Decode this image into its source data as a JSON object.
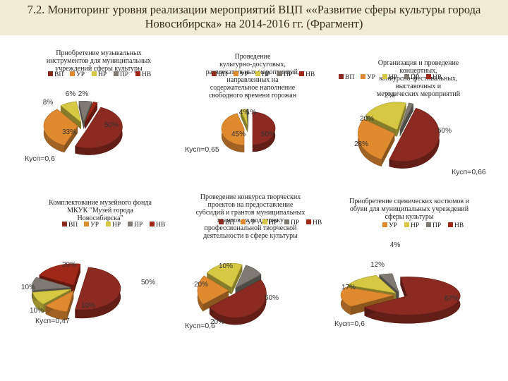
{
  "header": {
    "line1": "7.2. Мониторинг уровня реализации мероприятий ВЦП ««Развитие сферы культуры города",
    "line2": "Новосибирска» на 2014-2016 гг. (Фрагмент)"
  },
  "colors": {
    "ВП": "#8a2a20",
    "УР": "#e08a30",
    "НР": "#d6c842",
    "ПР": "#7e7a72",
    "НВ": "#a02818"
  },
  "chart_data": [
    {
      "type": "pie",
      "title": "Приобретение музыкальных инструментов для муниципальных учреждений сферы культуры",
      "legend": [
        "ВП",
        "УР",
        "НР",
        "ПР",
        "НВ"
      ],
      "legend_placement": "under-title",
      "slices": [
        {
          "category": "ВП",
          "value": 50,
          "label": "50%"
        },
        {
          "category": "УР",
          "value": 33,
          "label": "33%"
        },
        {
          "category": "НР",
          "value": 8,
          "label": "8%"
        },
        {
          "category": "ПР",
          "value": 6,
          "label": "6%"
        },
        {
          "category": "НВ",
          "value": 2,
          "label": "2%"
        }
      ],
      "note": "Кусп=0,6"
    },
    {
      "type": "pie",
      "title": "Проведение культурно-досуговых, развлекательных мероприятий, направленных на содержательное наполнение свободного времени горожан",
      "legend": [
        "ВП",
        "УР",
        "НР",
        "ПР",
        "НВ"
      ],
      "legend_placement": "over-title",
      "slices": [
        {
          "category": "ВП",
          "value": 50,
          "label": "50%"
        },
        {
          "category": "УР",
          "value": 45,
          "label": "45%"
        },
        {
          "category": "НР",
          "value": 4,
          "label": "4%"
        },
        {
          "category": "ПР",
          "value": 1,
          "label": "1%"
        }
      ],
      "note": "Кусп=0,65"
    },
    {
      "type": "pie",
      "title": "Организация и проведение концертных, конкурсно-фестивальных, выставочных и методических мероприятий",
      "legend": [
        "ВП",
        "УР",
        "НР",
        "ПР",
        "НВ"
      ],
      "legend_placement": "over-title",
      "slices": [
        {
          "category": "ВП",
          "value": 50,
          "label": "50%"
        },
        {
          "category": "УР",
          "value": 28,
          "label": "28%"
        },
        {
          "category": "НР",
          "value": 20,
          "label": "20%"
        },
        {
          "category": "ПР",
          "value": 2,
          "label": "2%"
        }
      ],
      "note": "Кусп=0,66"
    },
    {
      "type": "pie",
      "title": "Комплектование музейного фонда МКУК \"Музей города Новосибирска\"",
      "legend": [
        "ВП",
        "УР",
        "НР",
        "ПР",
        "НВ"
      ],
      "legend_placement": "over-title",
      "slices": [
        {
          "category": "ВП",
          "value": 50,
          "label": "50%"
        },
        {
          "category": "УР",
          "value": 10,
          "label": "10%"
        },
        {
          "category": "НР",
          "value": 10,
          "label": "10%"
        },
        {
          "category": "ПР",
          "value": 10,
          "label": "10%"
        },
        {
          "category": "НВ",
          "value": 20,
          "label": "20%"
        }
      ],
      "note": "Кусп=0,47"
    },
    {
      "type": "pie",
      "title": "Проведение конкурса творческих проектов на предоставление субсидий и грантов муниципальных грантов на поддержку профессиональной творческой деятельности в сфере культуры",
      "legend": [
        "ВП",
        "УР",
        "НР",
        "ПР",
        "НВ"
      ],
      "legend_placement": "over-title",
      "slices": [
        {
          "category": "ВП",
          "value": 50,
          "label": "50%"
        },
        {
          "category": "УР",
          "value": 20,
          "label": "20%"
        },
        {
          "category": "НР",
          "value": 20,
          "label": "20%"
        },
        {
          "category": "ПР",
          "value": 10,
          "label": "10%"
        }
      ],
      "note": "Кусп=0,6"
    },
    {
      "type": "pie",
      "title": "Приобретение сценических костюмов и обуви для муниципальных учреждений сферы культуры",
      "legend": [
        "УР",
        "НР",
        "ПР",
        "НВ"
      ],
      "legend_placement": "under-title",
      "slices": [
        {
          "category": "ВП",
          "value": 67,
          "label": "67%"
        },
        {
          "category": "УР",
          "value": 17,
          "label": "17%"
        },
        {
          "category": "НР",
          "value": 12,
          "label": "12%"
        },
        {
          "category": "ПР",
          "value": 4,
          "label": "4%"
        }
      ],
      "note": "Кусп=0,6"
    }
  ]
}
